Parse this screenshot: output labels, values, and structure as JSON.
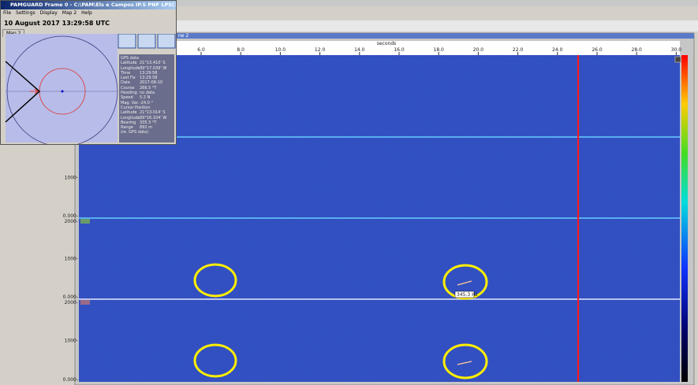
{
  "overlay": {
    "title": "PAMGUARD Frame 0 - C:\\PAM\\Els e Campos IP.S PNF LPS(1)4201...",
    "menu": [
      "File",
      "Settings",
      "Display",
      "Map 2",
      "Help"
    ],
    "datetime": "10 August 2017 13:29:58 UTC",
    "tab": "Map 2",
    "gps_heading": "GPS data",
    "gps": [
      [
        "Latitude",
        "21°13.410' S"
      ],
      [
        "Longitude",
        "39°17.039' W"
      ],
      [
        "Time",
        "13:29:58"
      ],
      [
        "Last Fix",
        "13:29:58"
      ],
      [
        "Date",
        "2017-08-10"
      ],
      [
        "Course",
        "266.5 °T"
      ],
      [
        "Heading",
        "no data"
      ],
      [
        "Speed",
        "5.2 N"
      ],
      [
        "Mag. Var.",
        "-24.0 °"
      ]
    ],
    "cursor_heading": "Cursor Position",
    "cursor": [
      [
        "Latitude",
        "21°13.014' S"
      ],
      [
        "Longitude",
        "39°16.104' W"
      ],
      [
        "Bearing",
        "335.3 °T"
      ],
      [
        "Range",
        "892 m"
      ]
    ],
    "cursor_note": "(re. GPS data)"
  },
  "main": {
    "tab": "ne 2",
    "axis_title": "seconds",
    "time_ticks": [
      "6.0",
      "8.0",
      "10.0",
      "12.0",
      "14.0",
      "16.0",
      "18.0",
      "20.0",
      "22.0",
      "24.0",
      "26.0",
      "28.0",
      "30.0"
    ],
    "freq_labels": [
      {
        "text": "1000-",
        "strip": 1,
        "pos": "mid"
      },
      {
        "text": "0.000-",
        "strip": 1,
        "pos": "bottom"
      },
      {
        "text": "2000-",
        "strip": 2,
        "pos": "top"
      },
      {
        "text": "1000-",
        "strip": 2,
        "pos": "mid"
      },
      {
        "text": "0.000-",
        "strip": 2,
        "pos": "bottom"
      },
      {
        "text": "2000-",
        "strip": 3,
        "pos": "top"
      },
      {
        "text": "1000-",
        "strip": 3,
        "pos": "mid"
      },
      {
        "text": "0.000-",
        "strip": 3,
        "pos": "bottom"
      }
    ],
    "annotation": "345.3 Hz"
  }
}
